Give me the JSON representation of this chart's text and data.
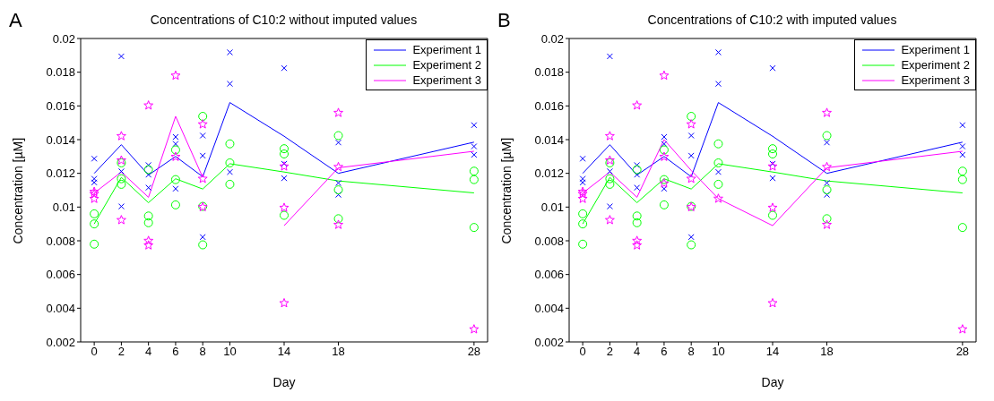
{
  "chart_data": [
    {
      "type": "line",
      "title": "Concentrations of C10:2 without imputed values",
      "xlabel": "Day",
      "ylabel": "Concentration [µM]",
      "annotations": [
        "A"
      ],
      "x": [
        0,
        2,
        4,
        6,
        8,
        10,
        14,
        18,
        28
      ],
      "xlim": [
        -1,
        29
      ],
      "xticks": [
        0,
        2,
        4,
        6,
        8,
        10,
        14,
        18,
        28
      ],
      "ylim": [
        0.002,
        0.02
      ],
      "yticks": [
        0.002,
        0.004,
        0.006,
        0.008,
        0.01,
        0.012,
        0.014,
        0.016,
        0.018,
        0.02
      ],
      "legend": "top right",
      "grid": false,
      "series": [
        {
          "name": "Experiment 1",
          "color": "#0000ff",
          "marker": "none",
          "values": [
            0.012,
            0.0137,
            0.0119,
            0.013,
            0.0118,
            0.0162,
            0.0142,
            0.012,
            0.01385
          ]
        },
        {
          "name": "Experiment 2",
          "color": "#00ff00",
          "marker": "none",
          "values": [
            0.009,
            0.01176,
            0.01026,
            0.01168,
            0.01107,
            0.01257,
            0.01208,
            0.01155,
            0.01084
          ]
        },
        {
          "name": "Experiment 3",
          "color": "#ff00ff",
          "marker": "none",
          "values": [
            0.01083,
            0.01208,
            0.01058,
            0.01538,
            0.01176,
            null,
            0.0089,
            0.01233,
            0.01331
          ]
        },
        {
          "type": "scatter",
          "color": "#0000ff",
          "marker": "cross",
          "x": [
            0,
            0,
            0,
            2,
            2,
            2,
            4,
            4,
            4,
            6,
            6,
            6,
            8,
            8,
            8,
            10,
            10,
            10,
            14,
            14,
            14,
            18,
            18,
            18,
            28,
            28,
            28
          ],
          "values": [
            0.01287,
            0.01168,
            0.01146,
            0.01894,
            0.01212,
            0.01004,
            0.01249,
            0.01192,
            0.01115,
            0.01416,
            0.01375,
            0.01109,
            0.01424,
            0.01305,
            0.00822,
            0.01918,
            0.01731,
            0.01208,
            0.01824,
            0.01257,
            0.01171,
            0.01383,
            0.01143,
            0.01073,
            0.01486,
            0.0136,
            0.0131
          ]
        },
        {
          "type": "scatter",
          "color": "#00ff00",
          "marker": "circle",
          "x": [
            0,
            0,
            0,
            2,
            2,
            2,
            4,
            4,
            4,
            6,
            6,
            6,
            8,
            8,
            8,
            10,
            10,
            10,
            14,
            14,
            14,
            18,
            18,
            18,
            28,
            28,
            28
          ],
          "values": [
            0.0096,
            0.009,
            0.0078,
            0.01262,
            0.01168,
            0.01135,
            0.01222,
            0.00947,
            0.00907,
            0.01339,
            0.01163,
            0.01013,
            0.01538,
            0.01004,
            0.00776,
            0.01375,
            0.01262,
            0.01135,
            0.01346,
            0.01315,
            0.00951,
            0.01424,
            0.01102,
            0.00931,
            0.01213,
            0.01163,
            0.00879
          ]
        },
        {
          "type": "scatter",
          "color": "#ff00ff",
          "marker": "star",
          "x": [
            0,
            0,
            0,
            2,
            2,
            2,
            4,
            4,
            4,
            6,
            6,
            8,
            8,
            8,
            14,
            14,
            14,
            18,
            18,
            18,
            28
          ],
          "values": [
            0.01091,
            0.01078,
            0.01049,
            0.01421,
            0.01277,
            0.00923,
            0.01603,
            0.008,
            0.00773,
            0.0178,
            0.01298,
            0.01491,
            0.01168,
            0.01,
            0.01241,
            0.00996,
            0.0043,
            0.01559,
            0.01238,
            0.00895,
            0.00275
          ]
        }
      ]
    },
    {
      "type": "line",
      "title": "Concentrations of C10:2 with imputed values",
      "xlabel": "Day",
      "ylabel": "Concentration [µM]",
      "annotations": [
        "B"
      ],
      "x": [
        0,
        2,
        4,
        6,
        8,
        10,
        14,
        18,
        28
      ],
      "xlim": [
        -1,
        29
      ],
      "xticks": [
        0,
        2,
        4,
        6,
        8,
        10,
        14,
        18,
        28
      ],
      "ylim": [
        0.002,
        0.02
      ],
      "yticks": [
        0.002,
        0.004,
        0.006,
        0.008,
        0.01,
        0.012,
        0.014,
        0.016,
        0.018,
        0.02
      ],
      "legend": "top right",
      "grid": false,
      "series": [
        {
          "name": "Experiment 1",
          "color": "#0000ff",
          "marker": "none",
          "values": [
            0.012,
            0.0137,
            0.0119,
            0.013,
            0.0118,
            0.0162,
            0.0142,
            0.012,
            0.01385
          ]
        },
        {
          "name": "Experiment 2",
          "color": "#00ff00",
          "marker": "none",
          "values": [
            0.009,
            0.01176,
            0.01026,
            0.01168,
            0.01107,
            0.01257,
            0.01208,
            0.01155,
            0.01084
          ]
        },
        {
          "name": "Experiment 3",
          "color": "#ff00ff",
          "marker": "none",
          "values": [
            0.01083,
            0.01208,
            0.01058,
            0.014,
            0.01217,
            0.0105,
            0.0089,
            0.01233,
            0.01331
          ]
        },
        {
          "type": "scatter",
          "color": "#0000ff",
          "marker": "cross",
          "x": [
            0,
            0,
            0,
            2,
            2,
            2,
            4,
            4,
            4,
            6,
            6,
            6,
            8,
            8,
            8,
            10,
            10,
            10,
            14,
            14,
            14,
            18,
            18,
            18,
            28,
            28,
            28
          ],
          "values": [
            0.01287,
            0.01168,
            0.01146,
            0.01894,
            0.01212,
            0.01004,
            0.01249,
            0.01192,
            0.01115,
            0.01416,
            0.01375,
            0.01109,
            0.01424,
            0.01305,
            0.00822,
            0.01918,
            0.01731,
            0.01208,
            0.01824,
            0.01257,
            0.01171,
            0.01383,
            0.01143,
            0.01073,
            0.01486,
            0.0136,
            0.0131
          ]
        },
        {
          "type": "scatter",
          "color": "#00ff00",
          "marker": "circle",
          "x": [
            0,
            0,
            0,
            2,
            2,
            2,
            4,
            4,
            4,
            6,
            6,
            6,
            8,
            8,
            8,
            10,
            10,
            10,
            14,
            14,
            14,
            18,
            18,
            18,
            28,
            28,
            28
          ],
          "values": [
            0.0096,
            0.009,
            0.0078,
            0.01262,
            0.01168,
            0.01135,
            0.01222,
            0.00947,
            0.00907,
            0.01339,
            0.01163,
            0.01013,
            0.01538,
            0.01004,
            0.00776,
            0.01375,
            0.01262,
            0.01135,
            0.01346,
            0.01315,
            0.00951,
            0.01424,
            0.01102,
            0.00931,
            0.01213,
            0.01163,
            0.00879
          ]
        },
        {
          "type": "scatter",
          "color": "#ff00ff",
          "marker": "star",
          "x": [
            0,
            0,
            0,
            2,
            2,
            2,
            4,
            4,
            4,
            6,
            6,
            6,
            8,
            8,
            8,
            10,
            14,
            14,
            14,
            18,
            18,
            18,
            28
          ],
          "values": [
            0.01091,
            0.01078,
            0.01049,
            0.01421,
            0.01277,
            0.00923,
            0.01603,
            0.008,
            0.00773,
            0.0178,
            0.01298,
            0.0114,
            0.01491,
            0.01168,
            0.01,
            0.0105,
            0.01241,
            0.00996,
            0.0043,
            0.01559,
            0.01238,
            0.00895,
            0.00275
          ]
        }
      ]
    }
  ]
}
